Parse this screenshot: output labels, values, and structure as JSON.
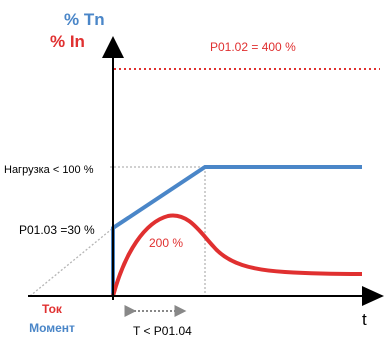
{
  "axis_labels": {
    "tn": "% Tn",
    "in": "% In",
    "time": "t"
  },
  "annotations": {
    "current_limit": "P01.02 = 400 %",
    "load": "Нагрузка < 100 %",
    "start_torque": "P01.03 =30 %",
    "peak_current": "200 %",
    "time_limit": "T < P01.04"
  },
  "legend": {
    "current": "Ток",
    "torque": "Момент"
  },
  "colors": {
    "torque": "#4a86c8",
    "current": "#e03030",
    "axis": "#000000",
    "dotted_guide": "#b0b0b0"
  }
}
